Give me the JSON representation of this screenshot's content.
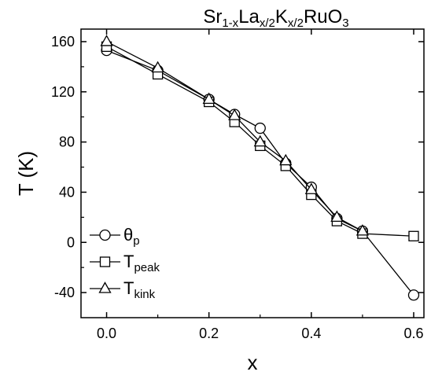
{
  "chart_data": {
    "type": "line",
    "title": {
      "parts": [
        {
          "text": "Sr",
          "sub": false
        },
        {
          "text": "1-x",
          "sub": true
        },
        {
          "text": "La",
          "sub": false
        },
        {
          "text": "x/2",
          "sub": true
        },
        {
          "text": "K",
          "sub": false
        },
        {
          "text": "x/2",
          "sub": true
        },
        {
          "text": "RuO",
          "sub": false
        },
        {
          "text": "3",
          "sub": true
        }
      ]
    },
    "xlabel": "x",
    "ylabel": "T (K)",
    "xlim": [
      -0.05,
      0.62
    ],
    "ylim": [
      -60,
      170
    ],
    "xticks": [
      "0.0",
      "0.2",
      "0.4",
      "0.6"
    ],
    "xtick_values": [
      0.0,
      0.2,
      0.4,
      0.6
    ],
    "yticks": [
      "-40",
      "0",
      "40",
      "80",
      "120",
      "160"
    ],
    "ytick_values": [
      -40,
      0,
      40,
      80,
      120,
      160
    ],
    "legend_position": "bottom-left",
    "series": [
      {
        "name_base": "θ",
        "name_sub": "p",
        "marker": "circle",
        "x": [
          0.0,
          0.1,
          0.2,
          0.25,
          0.3,
          0.35,
          0.4,
          0.45,
          0.5,
          0.6
        ],
        "y": [
          153,
          137,
          114,
          102,
          91,
          63,
          44,
          19,
          9,
          -42
        ]
      },
      {
        "name_base": "T",
        "name_sub": "peak",
        "marker": "square",
        "x": [
          0.0,
          0.1,
          0.2,
          0.25,
          0.3,
          0.35,
          0.4,
          0.45,
          0.5,
          0.6
        ],
        "y": [
          156,
          134,
          112,
          96,
          77,
          61,
          38,
          17,
          7,
          5
        ]
      },
      {
        "name_base": "T",
        "name_sub": "kink",
        "marker": "triangle",
        "x": [
          0.0,
          0.1,
          0.2,
          0.25,
          0.3,
          0.35,
          0.4,
          0.45,
          0.5
        ],
        "y": [
          160,
          139,
          114,
          101,
          80,
          65,
          42,
          20,
          9
        ]
      }
    ]
  }
}
